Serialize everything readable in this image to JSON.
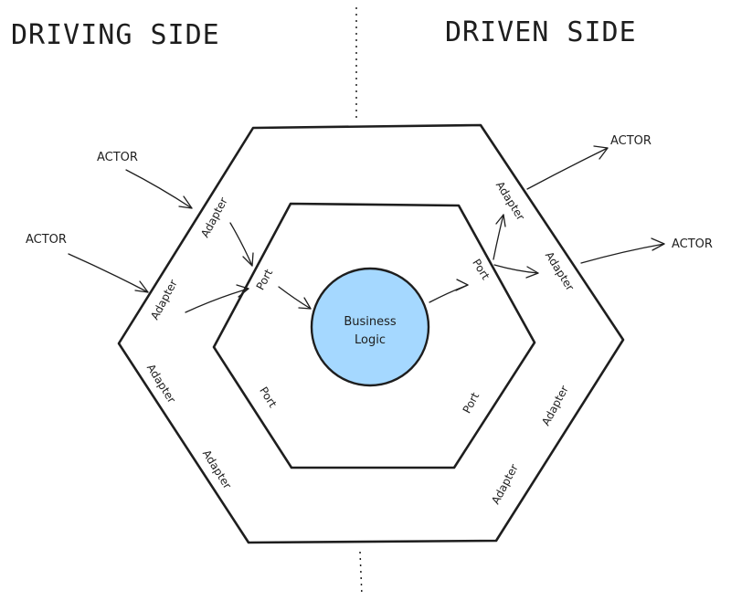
{
  "headings": {
    "driving": "DRIVING SIDE",
    "driven": "DRIVEN SIDE"
  },
  "actors": [
    "ACTOR",
    "ACTOR",
    "ACTOR",
    "ACTOR"
  ],
  "adapters": [
    "Adapter",
    "Adapter",
    "Adapter",
    "Adapter",
    "Adapter",
    "Adapter",
    "Adapter",
    "Adapter"
  ],
  "ports": [
    "Port",
    "Port",
    "Port",
    "Port"
  ],
  "core": {
    "line1": "Business",
    "line2": "Logic"
  },
  "colors": {
    "core_fill": "#a5d8ff",
    "stroke": "#1e1e1e"
  }
}
